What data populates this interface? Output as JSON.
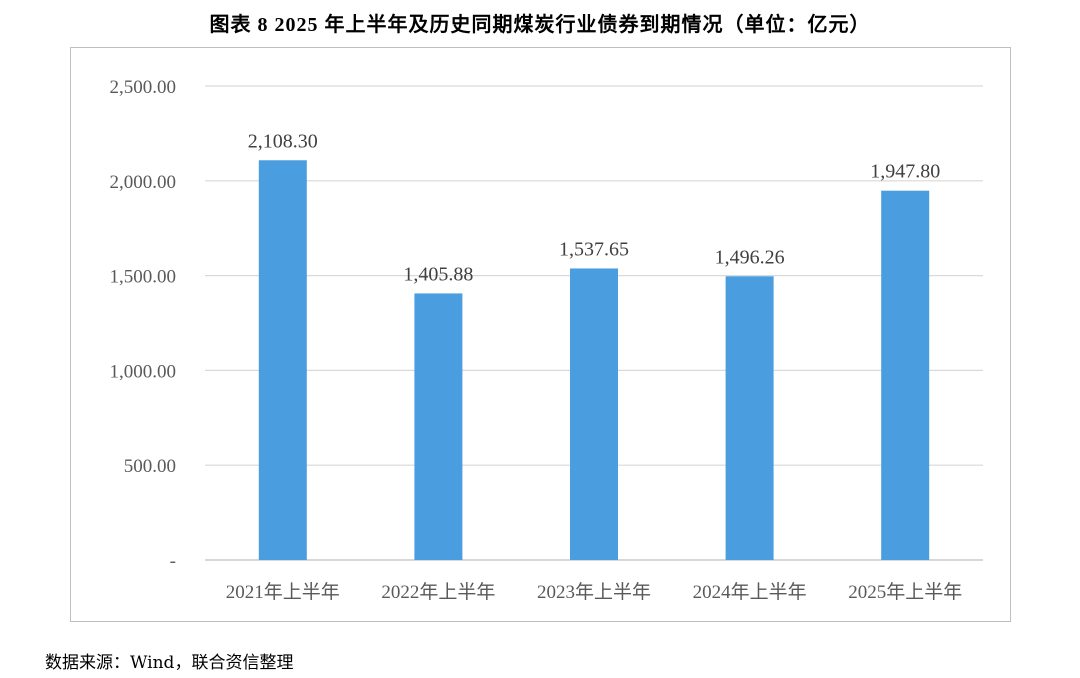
{
  "title": "图表 8   2025 年上半年及历史同期煤炭行业债券到期情况（单位：亿元）",
  "source": "数据来源：Wind，联合资信整理",
  "colors": {
    "bar": "#4a9dde",
    "grid": "#d9d9d9",
    "axis": "#bfbfbf",
    "text": "#595959",
    "label": "#404040"
  },
  "chart_data": {
    "type": "bar",
    "categories": [
      "2021年上半年",
      "2022年上半年",
      "2023年上半年",
      "2024年上半年",
      "2025年上半年"
    ],
    "values": [
      2108.3,
      1405.88,
      1537.65,
      1496.26,
      1947.8
    ],
    "value_labels": [
      "2,108.30",
      "1,405.88",
      "1,537.65",
      "1,496.26",
      "1,947.80"
    ],
    "ylim": [
      0,
      2500
    ],
    "yticks": [
      0,
      500,
      1000,
      1500,
      2000,
      2500
    ],
    "ytick_labels": [
      "-",
      "500.00",
      "1,000.00",
      "1,500.00",
      "2,000.00",
      "2,500.00"
    ],
    "grid": true,
    "legend": "none"
  }
}
